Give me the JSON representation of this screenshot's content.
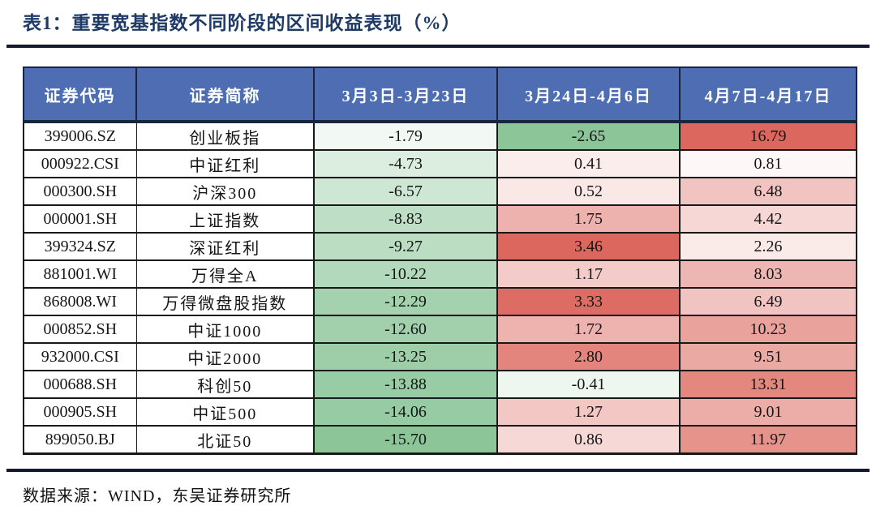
{
  "title": "表1：重要宽基指数不同阶段的区间收益表现（%）",
  "footer": {
    "source_label": "数据来源：WIND，东吴证券研究所"
  },
  "colors": {
    "header_bg": "#4E6DB2",
    "header_text": "#FFFFFF",
    "title_text": "#1F3A66",
    "scale_negative_full": "#8BC598",
    "scale_positive_full": "#DC675E",
    "scale_neutral": "#FFFFFF",
    "border_dark": "#191919",
    "header_border": "#1B2440"
  },
  "chart_data": {
    "type": "table",
    "title": "表1：重要宽基指数不同阶段的区间收益表现（%）",
    "color_scale": "per-column, white at 0, green toward column minimum, red toward column maximum",
    "columns": [
      "证券代码",
      "证券简称",
      "3月3日-3月23日",
      "3月24日-4月6日",
      "4月7日-4月17日"
    ],
    "rows": [
      {
        "code": "399006.SZ",
        "name": "创业板指",
        "values": [
          "-1.79",
          "-2.65",
          "16.79"
        ]
      },
      {
        "code": "000922.CSI",
        "name": "中证红利",
        "values": [
          "-4.73",
          "0.41",
          "0.81"
        ]
      },
      {
        "code": "000300.SH",
        "name": "沪深300",
        "values": [
          "-6.57",
          "0.52",
          "6.48"
        ]
      },
      {
        "code": "000001.SH",
        "name": "上证指数",
        "values": [
          "-8.83",
          "1.75",
          "4.42"
        ]
      },
      {
        "code": "399324.SZ",
        "name": "深证红利",
        "values": [
          "-9.27",
          "3.46",
          "2.26"
        ]
      },
      {
        "code": "881001.WI",
        "name": "万得全A",
        "values": [
          "-10.22",
          "1.17",
          "8.03"
        ]
      },
      {
        "code": "868008.WI",
        "name": "万得微盘股指数",
        "values": [
          "-12.29",
          "3.33",
          "6.49"
        ]
      },
      {
        "code": "000852.SH",
        "name": "中证1000",
        "values": [
          "-12.60",
          "1.72",
          "10.23"
        ]
      },
      {
        "code": "932000.CSI",
        "name": "中证2000",
        "values": [
          "-13.25",
          "2.80",
          "9.51"
        ]
      },
      {
        "code": "000688.SH",
        "name": "科创50",
        "values": [
          "-13.88",
          "-0.41",
          "13.31"
        ]
      },
      {
        "code": "000905.SH",
        "name": "中证500",
        "values": [
          "-14.06",
          "1.27",
          "9.01"
        ]
      },
      {
        "code": "899050.BJ",
        "name": "北证50",
        "values": [
          "-15.70",
          "0.86",
          "11.97"
        ]
      }
    ]
  }
}
